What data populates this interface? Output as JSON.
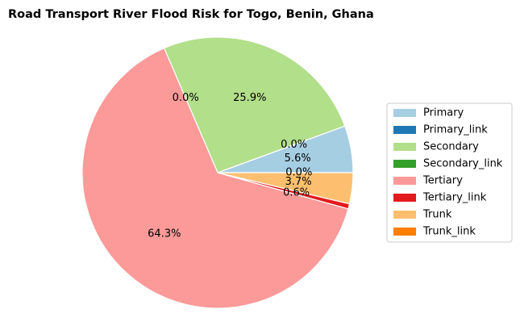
{
  "chart_data": {
    "type": "pie",
    "title": "Road Transport River Flood Risk for Togo, Benin, Ghana",
    "categories": [
      "Primary",
      "Primary_link",
      "Secondary",
      "Secondary_link",
      "Tertiary",
      "Tertiary_link",
      "Trunk",
      "Trunk_link"
    ],
    "values": [
      5.6,
      0.0,
      25.9,
      0.0,
      64.3,
      0.6,
      3.7,
      0.0
    ],
    "labels": [
      "5.6%",
      "0.0%",
      "25.9%",
      "0.0%",
      "64.3%",
      "0.6%",
      "3.7%",
      "0.0%"
    ],
    "colors": [
      "#a6cee3",
      "#1f78b4",
      "#b2df8a",
      "#33a02c",
      "#fb9a99",
      "#e31a1c",
      "#fdbf6f",
      "#ff7f00"
    ],
    "start_angle_deg": 0,
    "direction": "counterclockwise",
    "legend_placement": "right"
  }
}
